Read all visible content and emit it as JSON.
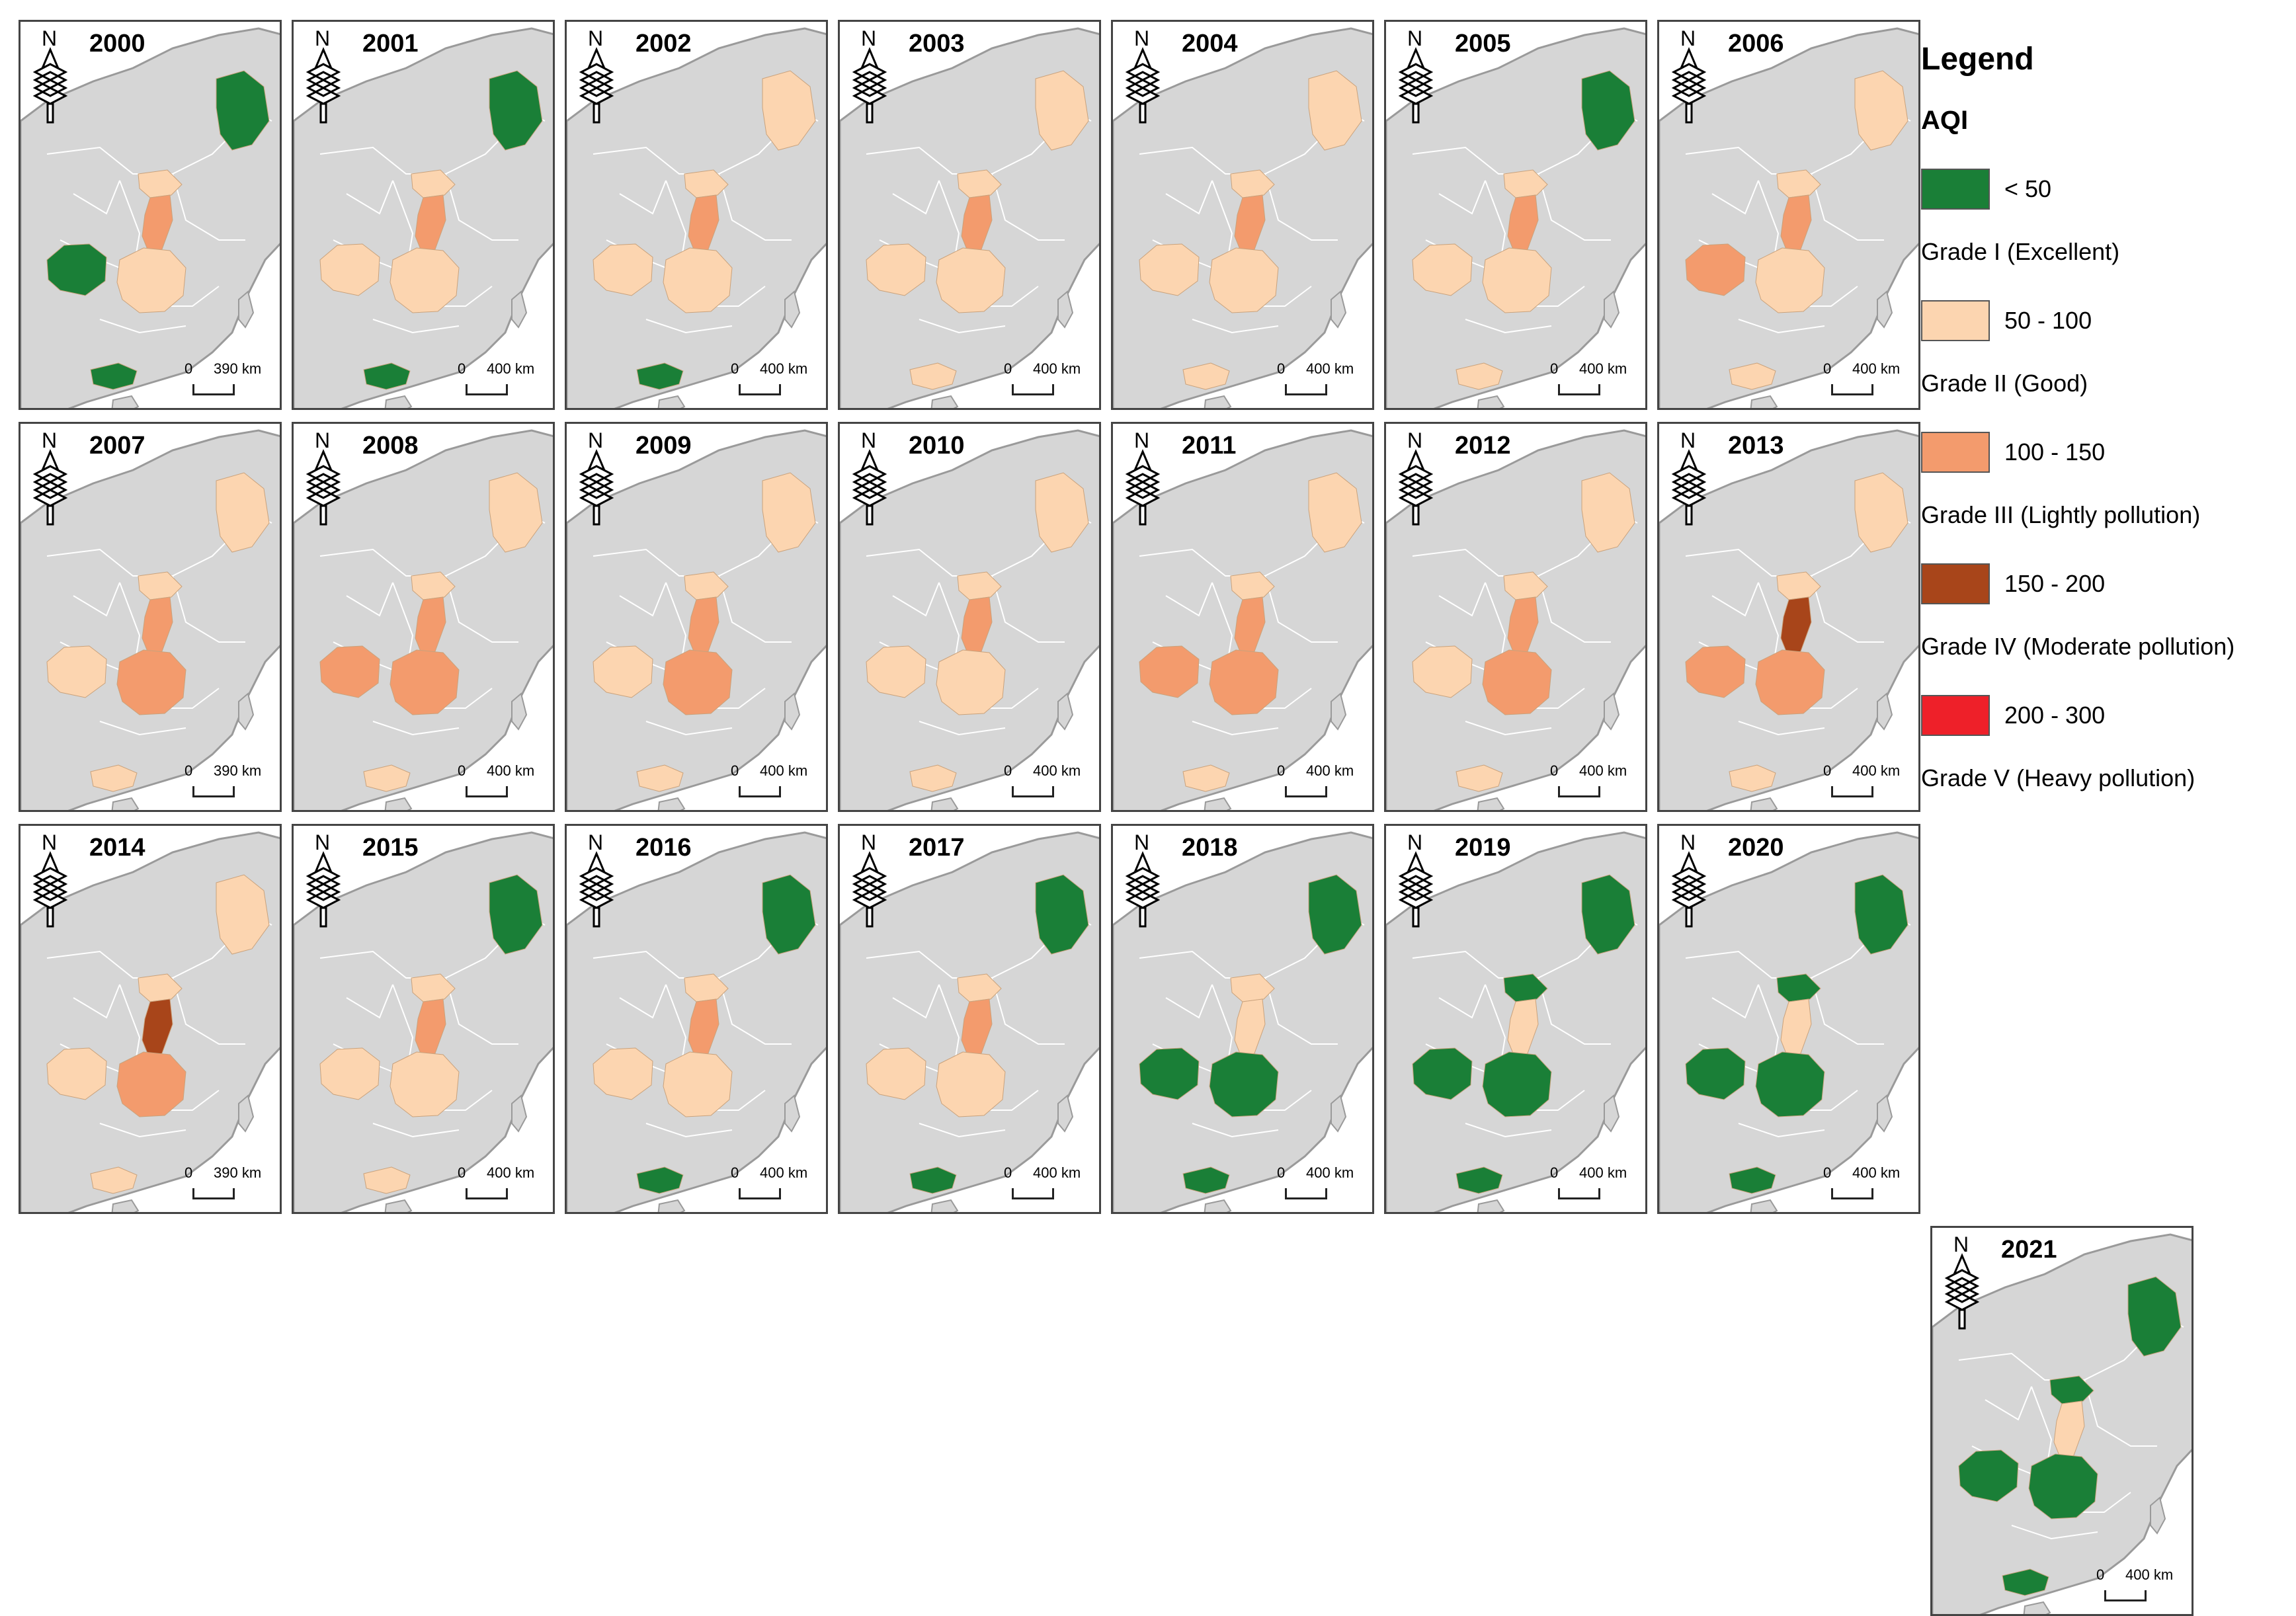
{
  "legend": {
    "title": "Legend",
    "subtitle": "AQI",
    "items": [
      {
        "range": "< 50",
        "grade": "Grade I (Excellent)",
        "color": "#1a7f37"
      },
      {
        "range": "50 - 100",
        "grade": "Grade II (Good)",
        "color": "#fcd5b0"
      },
      {
        "range": "100 - 150",
        "grade": "Grade III (Lightly pollution)",
        "color": "#f39b6d"
      },
      {
        "range": "150 - 200",
        "grade": "Grade IV (Moderate pollution)",
        "color": "#a8451a"
      },
      {
        "range": "200 - 300",
        "grade": "Grade V (Heavy pollution)",
        "color": "#ee2029"
      }
    ]
  },
  "north_label": "N",
  "scale_zero": "0",
  "maps": [
    {
      "year": "2000",
      "scale": "390 km",
      "levels": [
        0,
        1,
        2,
        0,
        1,
        0
      ]
    },
    {
      "year": "2001",
      "scale": "400 km",
      "levels": [
        0,
        1,
        2,
        1,
        1,
        0
      ]
    },
    {
      "year": "2002",
      "scale": "400 km",
      "levels": [
        1,
        1,
        2,
        1,
        1,
        0
      ]
    },
    {
      "year": "2003",
      "scale": "400 km",
      "levels": [
        1,
        1,
        2,
        1,
        1,
        1
      ]
    },
    {
      "year": "2004",
      "scale": "400 km",
      "levels": [
        1,
        1,
        2,
        1,
        1,
        1
      ]
    },
    {
      "year": "2005",
      "scale": "400 km",
      "levels": [
        0,
        1,
        2,
        1,
        1,
        1
      ]
    },
    {
      "year": "2006",
      "scale": "400 km",
      "levels": [
        1,
        1,
        2,
        2,
        1,
        1
      ]
    },
    {
      "year": "2007",
      "scale": "390 km",
      "levels": [
        1,
        1,
        2,
        1,
        2,
        1
      ]
    },
    {
      "year": "2008",
      "scale": "400 km",
      "levels": [
        1,
        1,
        2,
        2,
        2,
        1
      ]
    },
    {
      "year": "2009",
      "scale": "400 km",
      "levels": [
        1,
        1,
        2,
        1,
        2,
        1
      ]
    },
    {
      "year": "2010",
      "scale": "400 km",
      "levels": [
        1,
        1,
        2,
        1,
        1,
        1
      ]
    },
    {
      "year": "2011",
      "scale": "400 km",
      "levels": [
        1,
        1,
        2,
        2,
        2,
        1
      ]
    },
    {
      "year": "2012",
      "scale": "400 km",
      "levels": [
        1,
        1,
        2,
        1,
        2,
        1
      ]
    },
    {
      "year": "2013",
      "scale": "400 km",
      "levels": [
        1,
        1,
        3,
        2,
        2,
        1
      ]
    },
    {
      "year": "2014",
      "scale": "390 km",
      "levels": [
        1,
        1,
        3,
        1,
        2,
        1
      ]
    },
    {
      "year": "2015",
      "scale": "400 km",
      "levels": [
        0,
        1,
        2,
        1,
        1,
        1
      ]
    },
    {
      "year": "2016",
      "scale": "400 km",
      "levels": [
        0,
        1,
        2,
        1,
        1,
        0
      ]
    },
    {
      "year": "2017",
      "scale": "400 km",
      "levels": [
        0,
        1,
        2,
        1,
        1,
        0
      ]
    },
    {
      "year": "2018",
      "scale": "400 km",
      "levels": [
        0,
        1,
        1,
        0,
        0,
        0
      ]
    },
    {
      "year": "2019",
      "scale": "400 km",
      "levels": [
        0,
        0,
        1,
        0,
        0,
        0
      ]
    },
    {
      "year": "2020",
      "scale": "400 km",
      "levels": [
        0,
        0,
        1,
        0,
        0,
        0
      ]
    },
    {
      "year": "2021",
      "scale": "400 km",
      "levels": [
        0,
        0,
        1,
        0,
        0,
        0
      ]
    }
  ]
}
